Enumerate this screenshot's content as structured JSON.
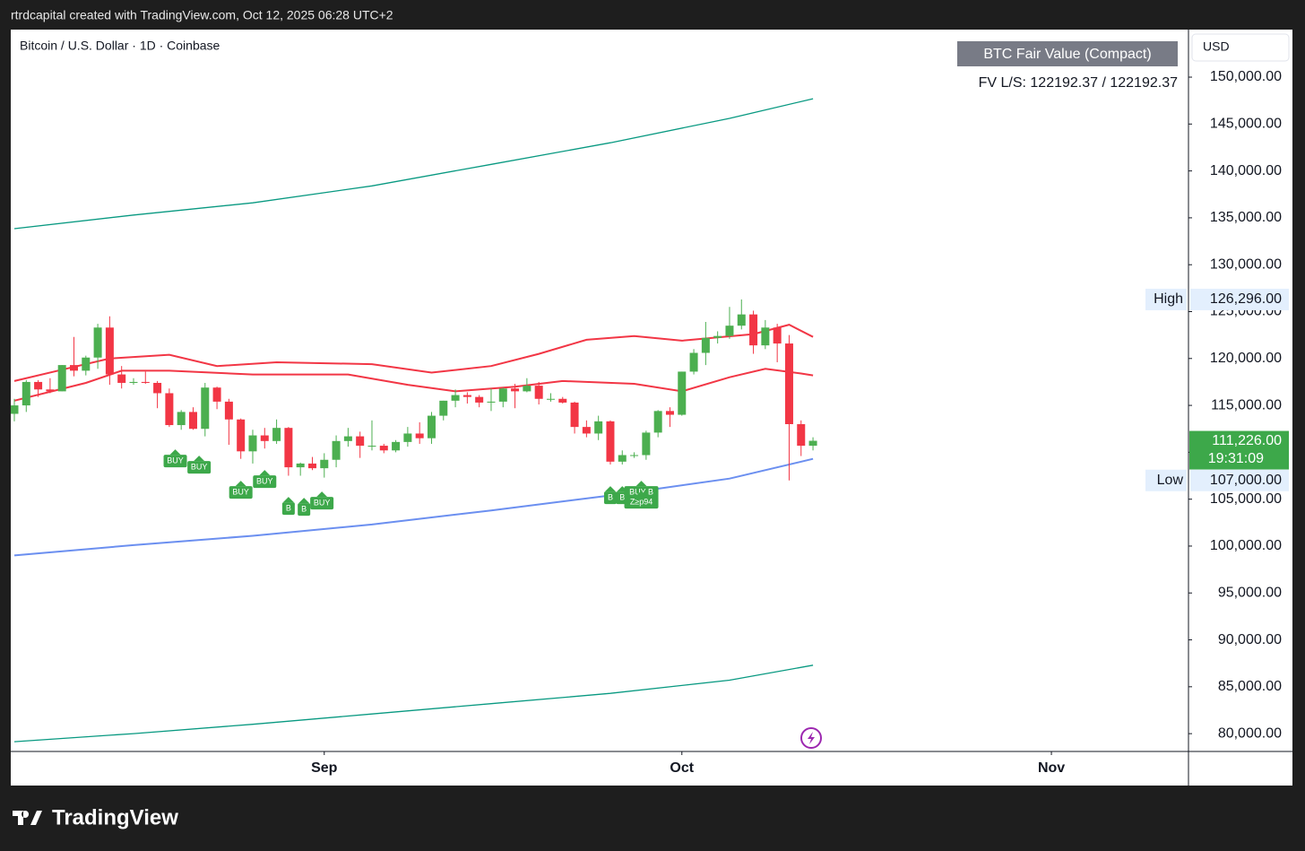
{
  "header": "rtrdcapital created with TradingView.com, Oct 12, 2025 06:28 UTC+2",
  "footer": "TradingView",
  "chart_data": {
    "type": "candlestick",
    "title": "Bitcoin / U.S. Dollar · 1D · Coinbase",
    "currency": "USD",
    "indicator_title": "BTC Fair Value (Compact)",
    "indicator_text": "FV L/S: 122192.37 / 122192.37",
    "up_color": "#4caf50",
    "down_color": "#f23645",
    "categories": [
      null,
      null,
      null,
      null,
      null,
      null,
      null,
      null,
      null,
      null,
      null,
      null,
      null,
      null,
      null,
      null,
      null,
      null,
      null,
      null,
      null,
      null,
      null,
      null,
      null,
      null,
      null,
      null,
      null,
      null,
      null,
      null,
      null,
      null,
      null,
      null,
      null,
      null,
      null,
      null,
      null,
      null,
      null,
      null,
      null,
      null,
      null,
      null,
      null,
      null,
      null,
      null,
      null,
      null,
      null,
      null,
      null,
      null,
      null,
      null,
      null,
      null,
      null,
      null,
      null,
      null,
      null,
      null
    ],
    "open": [
      114100,
      115000,
      117500,
      116700,
      116500,
      119300,
      118700,
      120100,
      123300,
      118300,
      117400,
      117500,
      117400,
      116300,
      112900,
      114300,
      112500,
      116900,
      115400,
      113500,
      110100,
      111800,
      111200,
      112600,
      108400,
      108800,
      108300,
      109200,
      111200,
      111700,
      110700,
      110700,
      110200,
      111100,
      112000,
      111500,
      113900,
      115500,
      116100,
      115900,
      115300,
      115400,
      116800,
      116500,
      117100,
      115700,
      115700,
      115300,
      112700,
      112000,
      113300,
      109000,
      109700,
      109700,
      112100,
      114400,
      114000,
      118600,
      120600,
      122200,
      122400,
      123500,
      124700,
      121400,
      123300,
      121600,
      113000,
      110700
    ],
    "high": [
      115700,
      117700,
      117700,
      117900,
      119300,
      122300,
      120300,
      123700,
      124500,
      119200,
      117900,
      118600,
      117600,
      116800,
      114500,
      114800,
      117400,
      117000,
      115700,
      113600,
      112400,
      112600,
      113500,
      112700,
      108900,
      109500,
      109900,
      111800,
      112600,
      112200,
      113400,
      110900,
      111300,
      112700,
      113200,
      114300,
      115500,
      116700,
      116400,
      116100,
      116800,
      116900,
      117300,
      117900,
      117500,
      116300,
      115900,
      115400,
      113400,
      113900,
      113400,
      110200,
      110000,
      112300,
      114500,
      114800,
      118600,
      121000,
      123900,
      122900,
      125500,
      126296,
      125100,
      124100,
      123700,
      122500,
      113400,
      111600
    ],
    "low": [
      113300,
      114300,
      115900,
      116300,
      116500,
      118100,
      118200,
      118900,
      117200,
      116800,
      117200,
      117300,
      114700,
      112700,
      112400,
      112400,
      111700,
      114600,
      110800,
      109300,
      108800,
      110400,
      110900,
      107500,
      107500,
      108100,
      107300,
      108400,
      110600,
      109400,
      110200,
      109900,
      110000,
      110600,
      110900,
      110900,
      113400,
      114800,
      115200,
      114800,
      114400,
      114800,
      114700,
      116400,
      115100,
      115400,
      115200,
      112000,
      111600,
      111300,
      108700,
      108700,
      109400,
      109200,
      111600,
      112700,
      113900,
      118300,
      119300,
      121600,
      122100,
      123100,
      120500,
      121000,
      119600,
      107000,
      109600,
      110200
    ],
    "close": [
      115000,
      117500,
      116700,
      116500,
      119300,
      118700,
      120100,
      123300,
      118300,
      117400,
      117500,
      117400,
      116300,
      112900,
      114300,
      112500,
      116900,
      115400,
      113500,
      110100,
      111800,
      111200,
      112600,
      108400,
      108800,
      108300,
      109200,
      111200,
      111700,
      110700,
      110700,
      110200,
      111100,
      112000,
      111500,
      113900,
      115500,
      116100,
      115900,
      115300,
      115400,
      116800,
      116500,
      117100,
      115700,
      115700,
      115300,
      112700,
      112000,
      113300,
      109000,
      109700,
      109700,
      112100,
      114400,
      114000,
      118600,
      120600,
      122200,
      122400,
      123500,
      124700,
      121400,
      123300,
      121600,
      113000,
      110700,
      111226
    ],
    "xlim": [
      -0.3,
      98.5
    ],
    "xticks": [
      {
        "value": 26,
        "label": "Sep"
      },
      {
        "value": 56,
        "label": "Oct"
      },
      {
        "value": 87,
        "label": "Nov"
      }
    ],
    "ylim": [
      78100,
      155070
    ],
    "yticks": [
      {
        "value": 80000,
        "label": "80,000.00"
      },
      {
        "value": 85000,
        "label": "85,000.00"
      },
      {
        "value": 90000,
        "label": "90,000.00"
      },
      {
        "value": 95000,
        "label": "95,000.00"
      },
      {
        "value": 100000,
        "label": "100,000.00"
      },
      {
        "value": 105000,
        "label": "105,000.00"
      },
      {
        "value": 110000,
        "label": "110,000.00"
      },
      {
        "value": 115000,
        "label": "115,000.00"
      },
      {
        "value": 120000,
        "label": "120,000.00"
      },
      {
        "value": 125000,
        "label": "125,000.00"
      },
      {
        "value": 130000,
        "label": "130,000.00"
      },
      {
        "value": 135000,
        "label": "135,000.00"
      },
      {
        "value": 140000,
        "label": "140,000.00"
      },
      {
        "value": 145000,
        "label": "145,000.00"
      },
      {
        "value": 150000,
        "label": "150,000.00"
      }
    ],
    "high_marker": {
      "text": "High",
      "value": 126296,
      "label": "126,296.00"
    },
    "low_marker": {
      "text": "Low",
      "value": 107000,
      "label": "107,000.00"
    },
    "last_price": {
      "value": 111226,
      "label": "111,226.00",
      "countdown": "19:31:09"
    },
    "overlays": [
      {
        "color": "#089981",
        "x": [
          0,
          10,
          20,
          30,
          40,
          50,
          60,
          67
        ],
        "values": [
          133840,
          135300,
          136600,
          138400,
          140700,
          143000,
          145600,
          147700
        ]
      },
      {
        "color": "#089981",
        "x": [
          0,
          10,
          20,
          30,
          40,
          50,
          60,
          67
        ],
        "values": [
          79140,
          80000,
          81000,
          82100,
          83200,
          84300,
          85700,
          87300
        ]
      },
      {
        "color": "#6b8ff0",
        "x": [
          0,
          10,
          20,
          30,
          40,
          50,
          60,
          67
        ],
        "values": [
          99000,
          100100,
          101100,
          102300,
          103800,
          105400,
          107200,
          109300
        ]
      },
      {
        "color": "#f23645",
        "x": [
          0,
          4,
          8,
          13,
          17,
          22,
          30,
          35,
          40,
          44,
          48,
          52,
          56,
          62,
          65,
          67
        ],
        "values": [
          117600,
          118800,
          120000,
          120400,
          119200,
          119600,
          119400,
          118500,
          119200,
          120500,
          122000,
          122400,
          121900,
          122600,
          123600,
          122300
        ]
      },
      {
        "color": "#f23645",
        "x": [
          0,
          6,
          9,
          13,
          20,
          28,
          33,
          37,
          42,
          46,
          52,
          56,
          60,
          63,
          66,
          67
        ],
        "values": [
          115500,
          117400,
          118700,
          118700,
          118300,
          118300,
          117200,
          116500,
          117000,
          117600,
          117300,
          116500,
          118000,
          118900,
          118400,
          118200
        ]
      }
    ],
    "signals": [
      {
        "text": "BUY",
        "x": 13.5,
        "y": 109070
      },
      {
        "text": "BUY",
        "x": 15.5,
        "y": 108400
      },
      {
        "text": "BUY",
        "x": 19,
        "y": 105725
      },
      {
        "text": "BUY",
        "x": 21,
        "y": 106870
      },
      {
        "text": "B",
        "x": 23,
        "y": 104000
      },
      {
        "text": "B",
        "x": 24.3,
        "y": 103900
      },
      {
        "text": "BUY",
        "x": 25.8,
        "y": 104575
      },
      {
        "text": "B",
        "x": 50,
        "y": 105150
      },
      {
        "text": "B",
        "x": 51,
        "y": 105150
      },
      {
        "text": "BUY B",
        "x": 52.6,
        "y": 105720
      },
      {
        "text": "Z≥p94",
        "x": 52.6,
        "y": 104670
      }
    ]
  }
}
